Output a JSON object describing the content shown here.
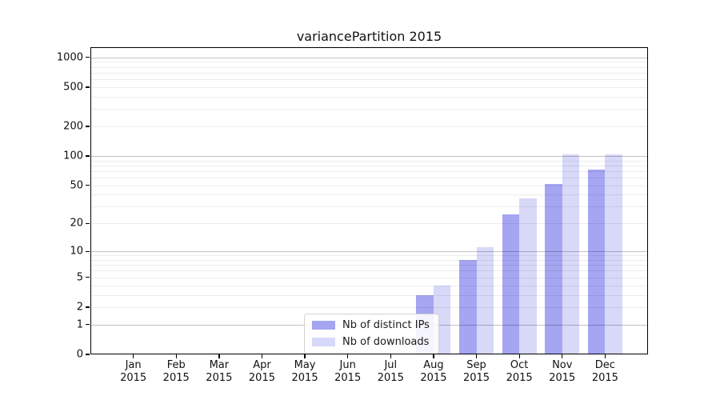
{
  "chart_data": {
    "type": "bar",
    "title": "variancePartition 2015",
    "categories": [
      {
        "month": "Jan",
        "year": "2015"
      },
      {
        "month": "Feb",
        "year": "2015"
      },
      {
        "month": "Mar",
        "year": "2015"
      },
      {
        "month": "Apr",
        "year": "2015"
      },
      {
        "month": "May",
        "year": "2015"
      },
      {
        "month": "Jun",
        "year": "2015"
      },
      {
        "month": "Jul",
        "year": "2015"
      },
      {
        "month": "Aug",
        "year": "2015"
      },
      {
        "month": "Sep",
        "year": "2015"
      },
      {
        "month": "Oct",
        "year": "2015"
      },
      {
        "month": "Nov",
        "year": "2015"
      },
      {
        "month": "Dec",
        "year": "2015"
      }
    ],
    "series": [
      {
        "name": "Nb of distinct IPs",
        "color": "#a5a5f2",
        "values": [
          0,
          0,
          0,
          0,
          0,
          0,
          0,
          3,
          8,
          25,
          52,
          72
        ]
      },
      {
        "name": "Nb of downloads",
        "color": "#d8d8f8",
        "values": [
          0,
          0,
          0,
          0,
          0,
          0,
          0,
          4,
          11,
          37,
          104,
          104
        ]
      }
    ],
    "xlabel": "",
    "ylabel": "",
    "y_scale": "log1p",
    "y_ticks": [
      0,
      1,
      2,
      5,
      10,
      20,
      50,
      100,
      200,
      500,
      1000
    ],
    "ylim": [
      0,
      1268
    ],
    "grid": "on",
    "grid_major_at": [
      1,
      10,
      100,
      1000
    ],
    "legend_position": "lower-center"
  },
  "colors": {
    "background": "#ffffff",
    "axis": "#000000",
    "bar_dark": "#a5a5f2",
    "bar_light": "#d8d8f8",
    "major_grid": "#c6c6c6",
    "minor_grid": "#ededed"
  }
}
